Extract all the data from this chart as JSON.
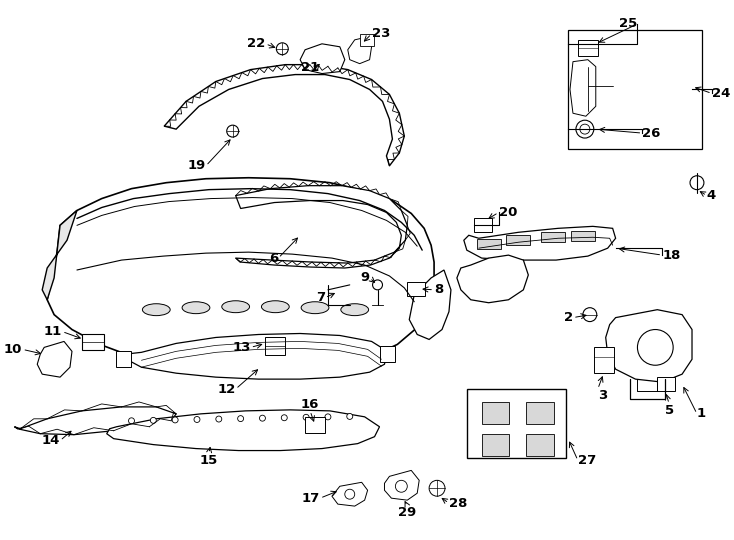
{
  "bg_color": "#ffffff",
  "line_color": "#000000",
  "figsize": [
    7.34,
    5.4
  ],
  "dpi": 100,
  "font_size": 9.5,
  "lw_main": 1.4,
  "lw_med": 1.0,
  "lw_thin": 0.7
}
